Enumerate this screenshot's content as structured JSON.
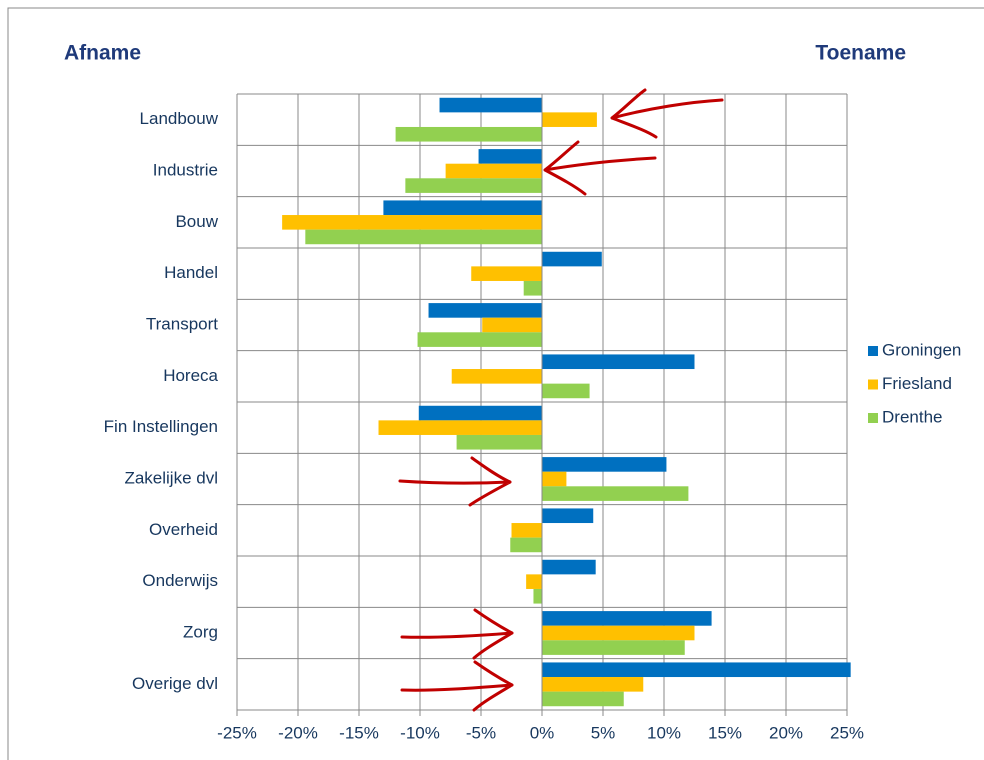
{
  "chart_data": {
    "type": "hbar",
    "annotations": [
      "Afname",
      "Toename"
    ],
    "categories": [
      "Landbouw",
      "Industrie",
      "Bouw",
      "Handel",
      "Transport",
      "Horeca",
      "Fin Instellingen",
      "Zakelijke dvl",
      "Overheid",
      "Onderwijs",
      "Zorg",
      "Overige dvl"
    ],
    "series": [
      {
        "name": "Groningen",
        "color": "#0070c0",
        "values": [
          -8.4,
          -5.2,
          -13.0,
          4.9,
          -9.3,
          12.5,
          -10.1,
          10.2,
          4.2,
          4.4,
          13.9,
          25.3
        ]
      },
      {
        "name": "Friesland",
        "color": "#ffc000",
        "values": [
          4.5,
          -7.9,
          -21.3,
          -5.8,
          -4.9,
          -7.4,
          -13.4,
          2.0,
          -2.5,
          -1.3,
          12.5,
          8.3
        ]
      },
      {
        "name": "Drenthe",
        "color": "#92d050",
        "values": [
          -12.0,
          -11.2,
          -19.4,
          -1.5,
          -10.2,
          3.9,
          -7.0,
          12.0,
          -2.6,
          -0.7,
          11.7,
          6.7
        ]
      }
    ],
    "xlim": [
      -25,
      25
    ],
    "xticks": [
      {
        "value": -25,
        "label": "-25%"
      },
      {
        "value": -20,
        "label": "-20%"
      },
      {
        "value": -15,
        "label": "-15%"
      },
      {
        "value": -10,
        "label": "-10%"
      },
      {
        "value": -5,
        "label": "-5%"
      },
      {
        "value": 0,
        "label": "0%"
      },
      {
        "value": 5,
        "label": "5%"
      },
      {
        "value": 10,
        "label": "10%"
      },
      {
        "value": 15,
        "label": "15%"
      },
      {
        "value": 20,
        "label": "20%"
      },
      {
        "value": 25,
        "label": "25%"
      }
    ],
    "grid": true,
    "legend": "right"
  }
}
